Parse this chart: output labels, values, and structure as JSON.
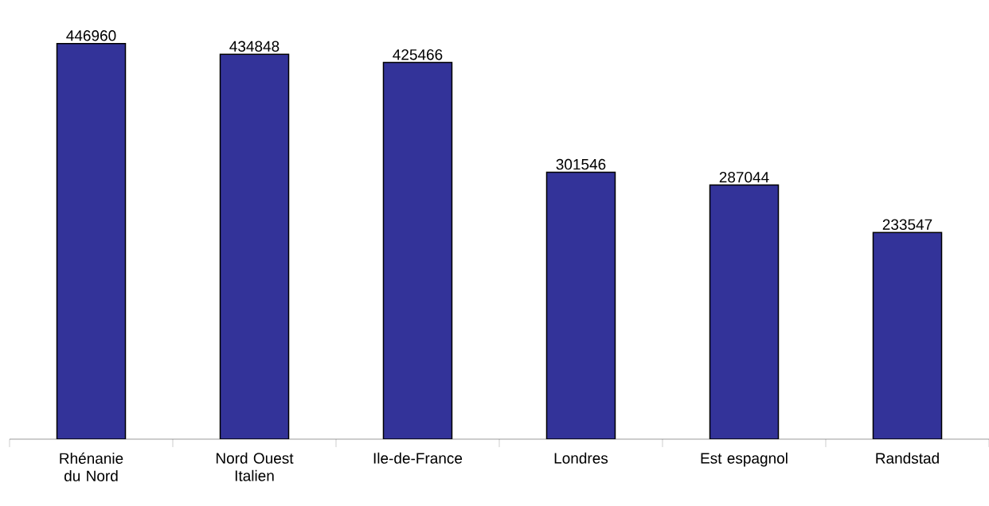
{
  "chart_data": {
    "type": "bar",
    "categories": [
      "Rhénanie du Nord",
      "Nord Ouest Italien",
      "Ile-de-France",
      "Londres",
      "Est espagnol",
      "Randstad"
    ],
    "values": [
      446960,
      434848,
      425466,
      301546,
      287044,
      233547
    ],
    "color": "#333399",
    "data_labels": true
  }
}
